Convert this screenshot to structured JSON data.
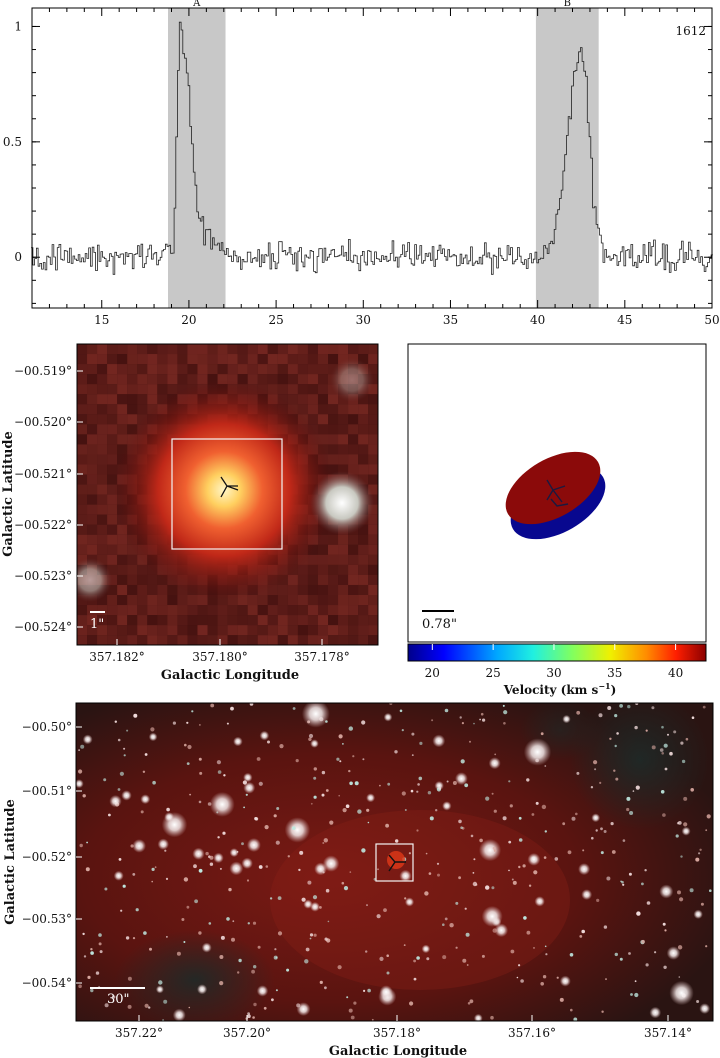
{
  "spectrum": {
    "chart_data": {
      "type": "line",
      "label": "1612",
      "xlim": [
        11,
        50
      ],
      "ylim": [
        -0.22,
        1.08
      ],
      "xticks": [
        "15",
        "20",
        "25",
        "30",
        "35",
        "40",
        "45",
        "50"
      ],
      "yticks": [
        "0",
        "0.5",
        "1"
      ],
      "bands": [
        {
          "name": "A",
          "range": [
            18.8,
            22.1
          ]
        },
        {
          "name": "B",
          "range": [
            39.9,
            43.5
          ]
        }
      ],
      "peaks": [
        {
          "band": "A",
          "x": 19.5,
          "y": 1.03
        },
        {
          "band": "B",
          "x": 42.5,
          "y": 0.9
        }
      ],
      "noise_sigma": 0.045
    }
  },
  "zoom_image": {
    "ylabel": "Galactic Latitude",
    "xlabel": "Galactic Longitude",
    "xticks": [
      "357.182°",
      "357.180°",
      "357.178°"
    ],
    "yticks": [
      "−00.519°",
      "−00.520°",
      "−00.521°",
      "−00.522°",
      "−00.523°",
      "−00.524°"
    ],
    "scalebar": "1\""
  },
  "velocity_panel": {
    "scalebar": "0.78\"",
    "colorbar_label": "Velocity (km s",
    "colorbar_unit_exp": "−1",
    "colorbar_close": ")",
    "colorbar_ticks": [
      "20",
      "25",
      "30",
      "35",
      "40"
    ],
    "colorbar_range": [
      18,
      42.5
    ],
    "red_color": "#8b0a0a",
    "blue_color": "#08088f"
  },
  "wide_image": {
    "ylabel": "Galactic Latitude",
    "xlabel": "Galactic Longitude",
    "xticks": [
      "357.22°",
      "357.20°",
      "357.18°",
      "357.16°",
      "357.14°"
    ],
    "yticks": [
      "−00.50°",
      "−00.51°",
      "−00.52°",
      "−00.53°",
      "−00.54°"
    ],
    "scalebar": "30\""
  }
}
